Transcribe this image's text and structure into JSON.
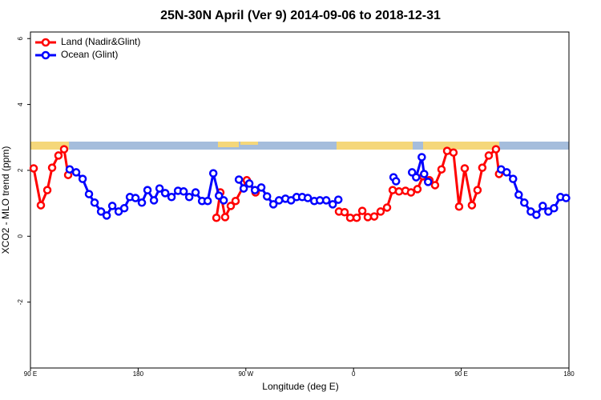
{
  "chart_data": {
    "type": "line",
    "title": "25N-30N April (Ver 9)   2014-09-06 to 2018-12-31",
    "xlabel": "Longitude (deg E)",
    "ylabel": "XCO2 - MLO trend (ppm)",
    "xlim": [
      90,
      540
    ],
    "xticks": [
      {
        "value": 90,
        "label": "90 E"
      },
      180,
      {
        "value": 270,
        "label": "90 W"
      },
      {
        "value": 360,
        "label": "0"
      },
      {
        "value": 450,
        "label": "90 E"
      },
      {
        "value": 540,
        "label": "180"
      }
    ],
    "ylim": [
      -4,
      6.2
    ],
    "yticks": [
      -2,
      0,
      2,
      4,
      6
    ],
    "legend": "top-left",
    "series": [
      {
        "name": "Land (Nadir&Glint)",
        "color": "#ff0000",
        "x": [
          92.7,
          98.7,
          104.1,
          108.1,
          113.4,
          118.1,
          121.5,
          null,
          245.4,
          248.7,
          252.7,
          257.4,
          261.4,
          270.8,
          278.1,
          null,
          347.8,
          352.5,
          357.2,
          362.6,
          367.3,
          371.9,
          377.3,
          382.6,
          388.0,
          392.7,
          398.0,
          403.4,
          408.0,
          413.4,
          418.1,
          423.4,
          428.1,
          433.5,
          438.2,
          443.5,
          448.2,
          452.9,
          458.9,
          463.6,
          467.6,
          473.0,
          479.0,
          481.6
        ],
        "values": [
          2.06,
          0.94,
          1.4,
          2.08,
          2.45,
          2.64,
          1.86,
          null,
          0.56,
          1.33,
          0.58,
          0.92,
          1.07,
          1.7,
          1.33,
          null,
          0.75,
          0.73,
          0.56,
          0.56,
          0.77,
          0.58,
          0.6,
          0.75,
          0.87,
          1.4,
          1.36,
          1.38,
          1.33,
          1.43,
          1.82,
          1.7,
          1.55,
          2.03,
          2.59,
          2.54,
          0.9,
          2.06,
          0.94,
          1.4,
          2.08,
          2.45,
          2.64,
          1.89
        ]
      },
      {
        "name": "Ocean (Glint)",
        "color": "#0000ff",
        "x": [
          122.8,
          128.2,
          133.6,
          138.9,
          143.6,
          149.0,
          153.7,
          158.4,
          163.7,
          168.4,
          173.1,
          177.8,
          183.1,
          187.8,
          193.2,
          197.9,
          202.6,
          207.9,
          213.3,
          218.0,
          222.7,
          228.0,
          233.4,
          238.1,
          242.8,
          247.5,
          251.5,
          null,
          264.2,
          268.2,
          272.9,
          277.6,
          282.9,
          287.7,
          293.0,
          297.7,
          303.1,
          307.8,
          312.4,
          317.1,
          321.8,
          327.2,
          331.9,
          337.2,
          342.6,
          347.3,
          null,
          393.4,
          395.5,
          null,
          408.9,
          412.3,
          417.0,
          419.0,
          422.3,
          null,
          483.3,
          488.0,
          493.3,
          498.0,
          502.7,
          508.1,
          512.8,
          518.1,
          522.8,
          527.5,
          532.9,
          537.6
        ],
        "values": [
          2.03,
          1.94,
          1.74,
          1.28,
          1.02,
          0.75,
          0.63,
          0.92,
          0.75,
          0.85,
          1.19,
          1.16,
          1.02,
          1.4,
          1.09,
          1.45,
          1.31,
          1.19,
          1.38,
          1.36,
          1.19,
          1.33,
          1.07,
          1.07,
          1.91,
          1.23,
          1.09,
          null,
          1.72,
          1.45,
          1.6,
          1.4,
          1.48,
          1.21,
          0.97,
          1.09,
          1.14,
          1.09,
          1.19,
          1.19,
          1.16,
          1.07,
          1.09,
          1.09,
          0.97,
          1.11,
          null,
          1.79,
          1.67,
          null,
          1.94,
          1.79,
          2.4,
          1.89,
          1.65,
          null,
          2.03,
          1.94,
          1.74,
          1.26,
          1.02,
          0.75,
          0.65,
          0.92,
          0.75,
          0.85,
          1.19,
          1.16
        ]
      }
    ]
  }
}
